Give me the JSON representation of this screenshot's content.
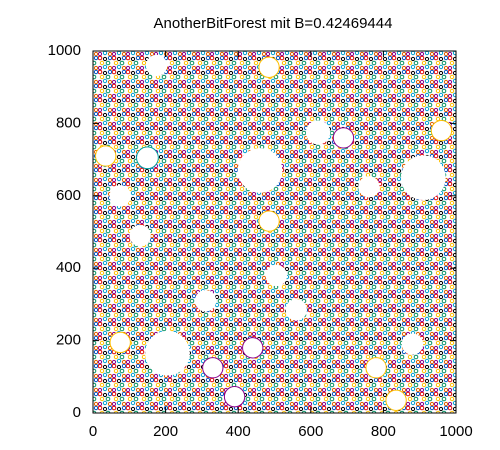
{
  "chart_data": {
    "type": "circles",
    "title": "AnotherBitForest mit B=0.42469444",
    "x": [
      460,
      910,
      205,
      620,
      690,
      485,
      175,
      35,
      150,
      75,
      130,
      485,
      760,
      960,
      310,
      505,
      560,
      330,
      440,
      75,
      390,
      780,
      880,
      835
    ],
    "values": [
      670,
      650,
      165,
      775,
      760,
      955,
      960,
      710,
      705,
      600,
      490,
      530,
      625,
      780,
      310,
      380,
      285,
      125,
      180,
      195,
      45,
      125,
      190,
      35
    ],
    "sizes": [
      60,
      60,
      60,
      32,
      28,
      28,
      28,
      28,
      30,
      28,
      28,
      28,
      28,
      28,
      28,
      28,
      28,
      28,
      28,
      28,
      28,
      28,
      28,
      28
    ],
    "colors": [
      "#ffffff",
      "#ffffff",
      "#ffffff",
      "#ffffff",
      "#8b008b",
      "#ffc000",
      "#ffffff",
      "#ffc000",
      "#00a0a0",
      "#ffffff",
      "#ffffff",
      "#ffc000",
      "#ffffff",
      "#ffc000",
      "#ffffff",
      "#ffffff",
      "#ffffff",
      "#8b008b",
      "#8b008b",
      "#ffc000",
      "#8b008b",
      "#ffc000",
      "#ffffff",
      "#ffc000"
    ],
    "xlim": [
      0,
      1000
    ],
    "ylim": [
      0,
      1000
    ],
    "xticks": [
      0,
      200,
      400,
      600,
      800,
      1000
    ],
    "yticks": [
      0,
      200,
      400,
      600,
      800,
      1000
    ]
  }
}
